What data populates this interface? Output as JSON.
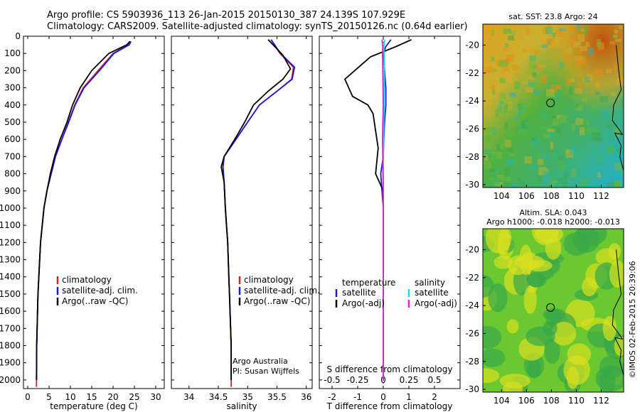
{
  "header": {
    "line1": "Argo profile: CS 5903936_113 26-Jan-2015 20150130_387 24.139S 107.929E",
    "line2": "Climatology: CARS2009. Satellite-adjusted climatology: synTS_20150126.nc (0.64d earlier)"
  },
  "colors": {
    "climatology": "#e02020",
    "satellite": "#1a1adf",
    "argo": "#000000",
    "salinity_satellite": "#11dddd",
    "salinity_argo": "#e020e0",
    "map_marker": "#000000"
  },
  "depth_axis": {
    "ticks": [
      "0",
      "100",
      "200",
      "300",
      "400",
      "500",
      "600",
      "700",
      "800",
      "900",
      "1000",
      "1100",
      "1200",
      "1300",
      "1400",
      "1500",
      "1600",
      "1700",
      "1800",
      "1900",
      "2000"
    ],
    "range": [
      0,
      2050
    ]
  },
  "chart_data": [
    {
      "id": "temperature",
      "type": "line",
      "xlabel": "temperature (deg C)",
      "ylim": [
        0,
        2050
      ],
      "xlim": [
        -1,
        32
      ],
      "xticks": [
        "0",
        "5",
        "10",
        "15",
        "20",
        "25",
        "30"
      ],
      "legend": [
        "climatology",
        "satellite-adj. clim.",
        "Argo(..raw -QC)"
      ],
      "legend_placement": "lower-right",
      "series": [
        {
          "name": "climatology",
          "role": "climatology",
          "x": [
            23.8,
            23.5,
            20,
            16.5,
            13,
            11,
            9.5,
            8,
            6.5,
            5.5,
            4.5,
            3.8,
            3.4,
            3,
            2.8,
            2.6,
            2.4,
            2.3,
            2.2,
            2.1,
            2.05
          ],
          "y": [
            30,
            50,
            100,
            200,
            300,
            400,
            500,
            600,
            700,
            800,
            900,
            1000,
            1100,
            1200,
            1300,
            1400,
            1500,
            1600,
            1700,
            1800,
            2040
          ]
        },
        {
          "name": "satellite-adj. clim.",
          "role": "satellite",
          "x": [
            24.2,
            23.8,
            20.2,
            16.8,
            13.2,
            11.1,
            9.6,
            8,
            6.5,
            5.5,
            4.5,
            3.8,
            3.4,
            3,
            2.8,
            2.6,
            2.4,
            2.3,
            2.2,
            2.1,
            2.05
          ],
          "y": [
            30,
            50,
            100,
            200,
            300,
            400,
            500,
            600,
            700,
            800,
            900,
            1000,
            1100,
            1200,
            1300,
            1400,
            1500,
            1600,
            1700,
            1800,
            2000
          ]
        },
        {
          "name": "Argo(..raw -QC)",
          "role": "argo",
          "x": [
            24,
            23.2,
            19,
            15,
            12.3,
            10.5,
            9.2,
            7.6,
            6.3,
            5.3,
            4.5,
            3.8,
            3.4,
            3,
            2.8,
            2.6,
            2.4,
            2.3,
            2.2,
            2.1,
            2.05
          ],
          "y": [
            30,
            50,
            100,
            200,
            300,
            400,
            500,
            600,
            700,
            800,
            900,
            1000,
            1100,
            1200,
            1300,
            1400,
            1500,
            1600,
            1700,
            1800,
            2000
          ]
        }
      ]
    },
    {
      "id": "salinity",
      "type": "line",
      "xlabel": "salinity",
      "ylim": [
        0,
        2050
      ],
      "xlim": [
        33.7,
        36.1
      ],
      "xticks": [
        "34",
        "34.5",
        "35",
        "35.5",
        "36"
      ],
      "legend": [
        "climatology",
        "satellite-adj. clim.",
        "Argo(..raw -QC)"
      ],
      "legend_placement": "lower-right",
      "annotation": [
        "Argo Australia",
        "PI: Susan Wijffels"
      ],
      "series": [
        {
          "name": "climatology",
          "role": "climatology",
          "x": [
            35.4,
            35.55,
            35.78,
            35.75,
            35.5,
            35.2,
            35,
            34.8,
            34.6,
            34.58,
            34.6,
            34.62,
            34.64,
            34.66,
            34.67,
            34.68,
            34.69,
            34.7,
            34.71,
            34.72,
            34.72
          ],
          "y": [
            20,
            100,
            180,
            250,
            320,
            400,
            500,
            600,
            700,
            760,
            850,
            1000,
            1100,
            1200,
            1300,
            1400,
            1500,
            1600,
            1700,
            1800,
            2040
          ]
        },
        {
          "name": "satellite-adj. clim.",
          "role": "satellite",
          "x": [
            35.4,
            35.56,
            35.8,
            35.76,
            35.5,
            35.2,
            35,
            34.8,
            34.6,
            34.58,
            34.6,
            34.62,
            34.64,
            34.66,
            34.67,
            34.68,
            34.69,
            34.7,
            34.71,
            34.72,
            34.72
          ],
          "y": [
            20,
            100,
            180,
            250,
            320,
            400,
            500,
            600,
            700,
            760,
            850,
            1000,
            1100,
            1200,
            1300,
            1400,
            1500,
            1600,
            1700,
            1800,
            2000
          ]
        },
        {
          "name": "Argo(..raw -QC)",
          "role": "argo",
          "x": [
            35.35,
            35.6,
            35.73,
            35.6,
            35.35,
            35.1,
            34.95,
            34.78,
            34.6,
            34.55,
            34.6,
            34.62,
            34.64,
            34.66,
            34.67,
            34.68,
            34.69,
            34.7,
            34.71,
            34.72,
            34.72
          ],
          "y": [
            20,
            110,
            190,
            250,
            320,
            400,
            500,
            600,
            700,
            760,
            850,
            1000,
            1100,
            1200,
            1300,
            1400,
            1500,
            1600,
            1700,
            1800,
            2000
          ]
        }
      ]
    },
    {
      "id": "differences",
      "type": "line",
      "xlabel": "T difference from climatology",
      "x2label": "S difference from climatology",
      "ylim": [
        0,
        2050
      ],
      "xlim": [
        -2.5,
        3
      ],
      "xticks": [
        "-2",
        "-1",
        "0",
        "1",
        "2"
      ],
      "x2ticks": [
        "-0.5",
        "-0.25",
        "0",
        "0.25",
        "0.5"
      ],
      "x2lim": [
        -0.625,
        0.75
      ],
      "legend_groups": [
        {
          "title": "temperature",
          "items": [
            "satellite",
            "Argo(-adj)"
          ]
        },
        {
          "title": "salinity",
          "items": [
            "satellite",
            "Argo(-adj)"
          ]
        }
      ],
      "series": [
        {
          "name": "satellite",
          "group": "temperature",
          "role": "satellite",
          "x": [
            0.3,
            0.1,
            0,
            0.05,
            0.1,
            0.1,
            0.05,
            0.02,
            0,
            -0.1,
            -0.05,
            0,
            0,
            0,
            0,
            0,
            0,
            0,
            0,
            0
          ],
          "y": [
            20,
            60,
            100,
            200,
            300,
            400,
            500,
            600,
            700,
            800,
            900,
            1000,
            1100,
            1200,
            1300,
            1400,
            1500,
            1600,
            1700,
            2000
          ]
        },
        {
          "name": "Argo(-adj)",
          "group": "temperature",
          "role": "argo",
          "x": [
            1.1,
            0.5,
            -0.5,
            -1.5,
            -1.2,
            -0.6,
            -0.4,
            -0.3,
            -0.2,
            -0.3,
            0,
            0,
            0,
            0,
            0,
            0,
            0,
            0,
            0,
            0
          ],
          "y": [
            20,
            60,
            120,
            250,
            350,
            400,
            450,
            550,
            650,
            800,
            900,
            1000,
            1100,
            1200,
            1300,
            1400,
            1500,
            1600,
            1700,
            2000
          ]
        },
        {
          "name": "satellite",
          "group": "salinity",
          "role": "salinity_satellite",
          "x": [
            0.05,
            0.02,
            0.03,
            0.04,
            0.04,
            0.03,
            0.02,
            0.01,
            0,
            0,
            0,
            0,
            0,
            0,
            0,
            0,
            0,
            0,
            0,
            0
          ],
          "y": [
            20,
            60,
            100,
            200,
            300,
            400,
            500,
            600,
            700,
            800,
            900,
            1000,
            1100,
            1200,
            1300,
            1400,
            1500,
            1600,
            1700,
            2000
          ]
        },
        {
          "name": "Argo(-adj)",
          "group": "salinity",
          "role": "salinity_argo",
          "x": [
            -0.05,
            -0.02,
            -0.03,
            -0.02,
            -0.01,
            0,
            -0.02,
            -0.03,
            -0.02,
            -0.01,
            0,
            0,
            0,
            0,
            0,
            0,
            0,
            0,
            0,
            0
          ],
          "y": [
            20,
            60,
            100,
            200,
            300,
            400,
            500,
            600,
            700,
            800,
            900,
            1000,
            1100,
            1200,
            1300,
            1400,
            1500,
            1600,
            1700,
            2000
          ]
        }
      ]
    }
  ],
  "maps": [
    {
      "id": "sst_map",
      "title": "sat. SST: 23.8 Argo: 24",
      "yticks": [
        "-20",
        "-22",
        "-24",
        "-26",
        "-28",
        "-30"
      ],
      "xticks": [
        "104",
        "106",
        "108",
        "110",
        "112"
      ],
      "float_position": {
        "lon": 107.929,
        "lat": -24.139
      }
    },
    {
      "id": "sla_map",
      "title": [
        "Altim. SLA: 0.043",
        "Argo h1000: -0.018 h2000: -0.013"
      ],
      "yticks": [
        "-20",
        "-22",
        "-24",
        "-26",
        "-28",
        "-30"
      ],
      "xticks": [
        "104",
        "106",
        "108",
        "110",
        "112"
      ],
      "float_position": {
        "lon": 107.929,
        "lat": -24.139
      }
    }
  ],
  "credit": "©IMOS 02-Feb-2015 20:39:06"
}
